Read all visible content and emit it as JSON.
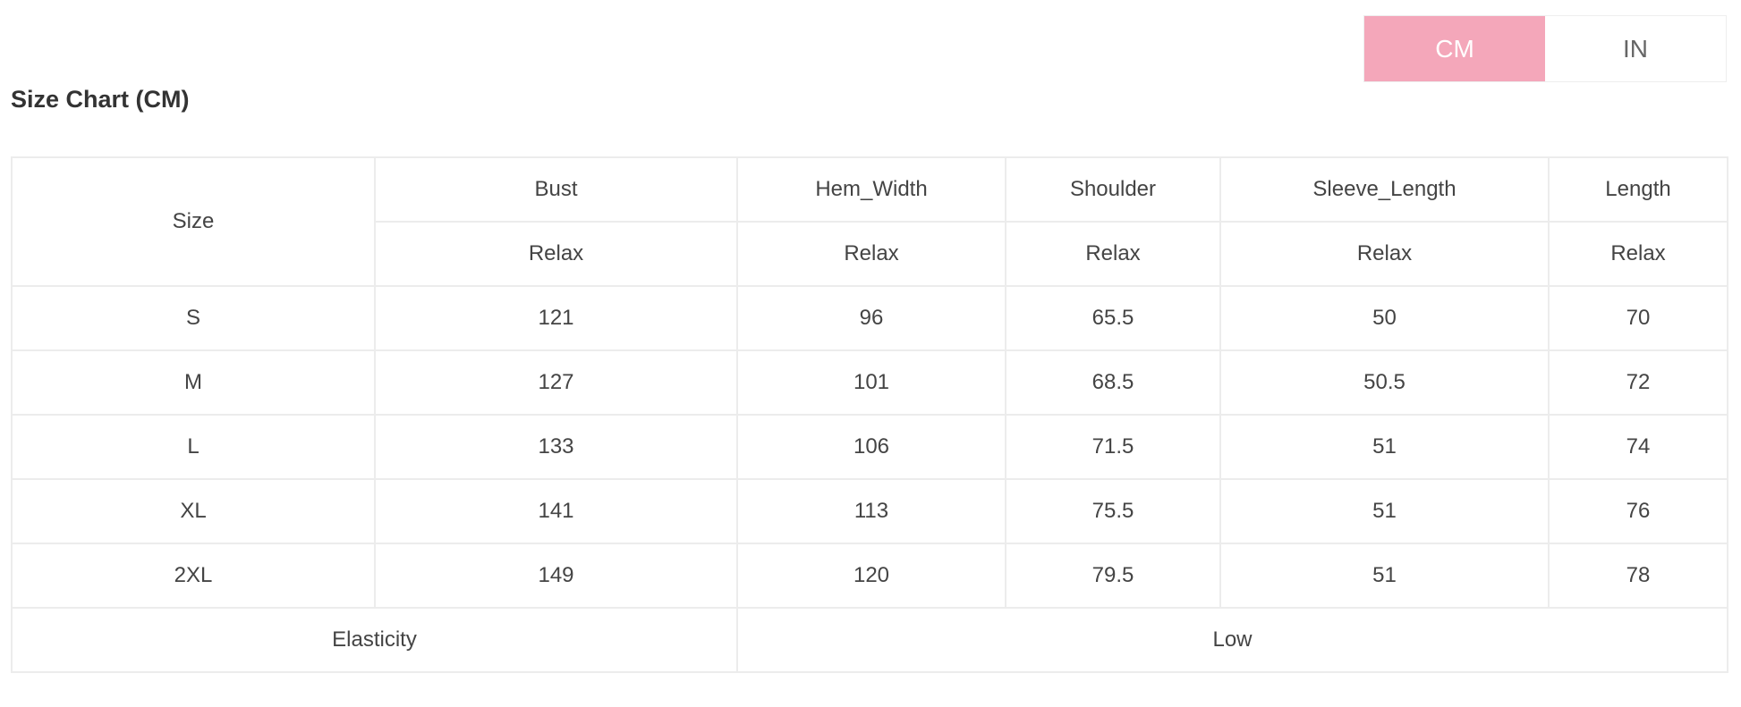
{
  "unit_toggle": {
    "options": [
      "CM",
      "IN"
    ],
    "selected": "CM",
    "accent_color": "#f4a7ba"
  },
  "title": "Size Chart (CM)",
  "table": {
    "size_header": "Size",
    "columns": [
      "Bust",
      "Hem_Width",
      "Shoulder",
      "Sleeve_Length",
      "Length"
    ],
    "subheaders": [
      "Relax",
      "Relax",
      "Relax",
      "Relax",
      "Relax"
    ],
    "rows": [
      {
        "size": "S",
        "values": [
          "121",
          "96",
          "65.5",
          "50",
          "70"
        ]
      },
      {
        "size": "M",
        "values": [
          "127",
          "101",
          "68.5",
          "50.5",
          "72"
        ]
      },
      {
        "size": "L",
        "values": [
          "133",
          "106",
          "71.5",
          "51",
          "74"
        ]
      },
      {
        "size": "XL",
        "values": [
          "141",
          "113",
          "75.5",
          "51",
          "76"
        ]
      },
      {
        "size": "2XL",
        "values": [
          "149",
          "120",
          "79.5",
          "51",
          "78"
        ]
      }
    ],
    "footer": {
      "label": "Elasticity",
      "value": "Low"
    }
  }
}
